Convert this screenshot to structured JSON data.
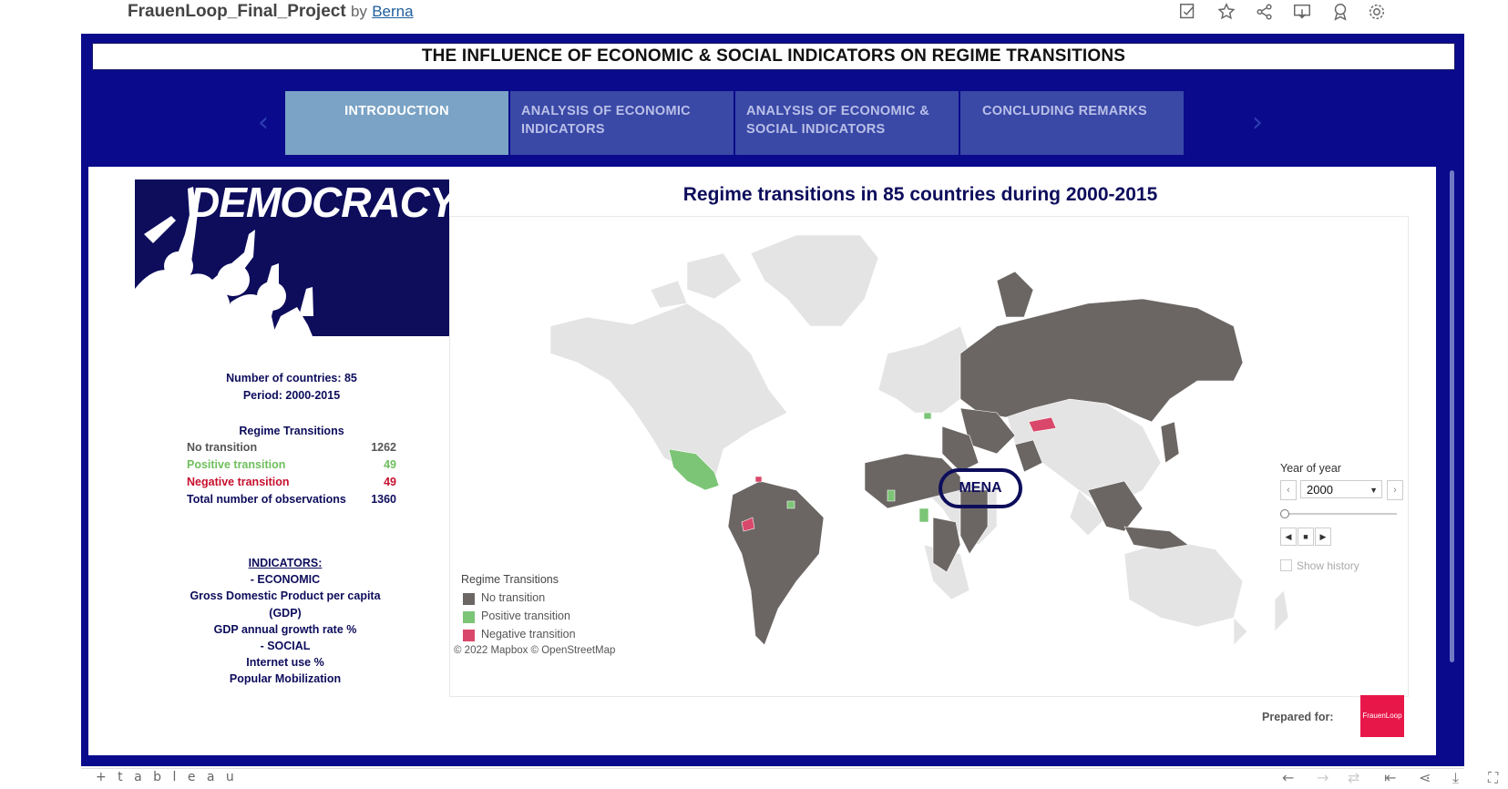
{
  "header": {
    "project_title": "FrauenLoop_Final_Project",
    "by": "by",
    "author": "Berna",
    "icons": [
      "edit-icon",
      "star-icon",
      "share-icon",
      "download-icon",
      "badge-icon",
      "gear-icon"
    ]
  },
  "dashboard": {
    "title": "THE INFLUENCE OF ECONOMIC & SOCIAL INDICATORS ON REGIME TRANSITIONS",
    "tabs": [
      {
        "label": "INTRODUCTION",
        "active": true
      },
      {
        "label": "ANALYSIS OF ECONOMIC INDICATORS",
        "active": false
      },
      {
        "label": "ANALYSIS OF ECONOMIC & SOCIAL INDICATORS",
        "active": false
      },
      {
        "label": "CONCLUDING REMARKS",
        "active": false
      }
    ],
    "colors": {
      "frame": "#0a0a8c",
      "tab": "#3a48a6",
      "tab_active": "#7aa3c5"
    }
  },
  "left_panel": {
    "banner_text": "DEMOCRACY!",
    "countries_line": "Number of countries: 85",
    "period_line": "Period: 2000-2015",
    "transitions_title": "Regime Transitions",
    "transitions": [
      {
        "label": "No transition",
        "value": "1262",
        "color": "#555555"
      },
      {
        "label": "Positive transition",
        "value": "49",
        "color": "#6fbf5e"
      },
      {
        "label": "Negative transition",
        "value": "49",
        "color": "#c8102e"
      },
      {
        "label": "Total number of observations",
        "value": "1360",
        "color": "#0d0d5c"
      }
    ],
    "indicators": {
      "heading": "INDICATORS:",
      "lines": [
        "- ECONOMIC",
        "Gross Domestic Product per capita (GDP)",
        "GDP annual growth rate %",
        "- SOCIAL",
        "Internet use %",
        "Popular Mobilization"
      ]
    }
  },
  "map": {
    "title": "Regime transitions in 85 countries during 2000-2015",
    "annotation": "MENA",
    "attribution": "© 2022 Mapbox  © OpenStreetMap",
    "legend": {
      "title": "Regime Transitions",
      "items": [
        {
          "label": "No transition",
          "color": "#6b6664"
        },
        {
          "label": "Positive transition",
          "color": "#7cc576"
        },
        {
          "label": "Negative transition",
          "color": "#d9486a"
        }
      ]
    },
    "colors": {
      "land_other": "#e4e4e4",
      "no_transition": "#6b6664",
      "positive": "#7cc576",
      "negative": "#d9486a"
    }
  },
  "year_filter": {
    "label": "Year of year",
    "value": "2000",
    "show_history": "Show history",
    "slider_position": 0
  },
  "footer": {
    "prepared_for": "Prepared for:",
    "logo_text": "FrauenLoop",
    "brand": "+ t a b l e a u"
  }
}
